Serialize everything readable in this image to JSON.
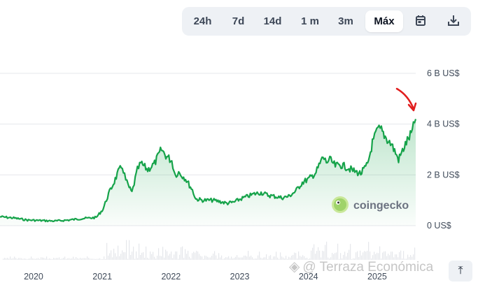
{
  "range_selector": {
    "options": [
      "24h",
      "7d",
      "14d",
      "1 m",
      "3m",
      "Máx"
    ],
    "active": "Máx",
    "calendar_icon": "calendar-icon",
    "download_icon": "download-icon"
  },
  "chart_data": {
    "type": "area",
    "title": "",
    "xlabel": "",
    "ylabel": "",
    "y_unit": "US$",
    "y_ticks": [
      "0 US$",
      "2 B US$",
      "4 B US$",
      "6 B US$"
    ],
    "y_tick_values": [
      0,
      2,
      4,
      6
    ],
    "ylim": [
      0,
      6
    ],
    "x_ticks": [
      "2020",
      "2021",
      "2022",
      "2023",
      "2024",
      "2025"
    ],
    "x_tick_values": [
      2020,
      2021,
      2022,
      2023,
      2024,
      2025
    ],
    "xlim": [
      2019.5,
      2025.55
    ],
    "grid": true,
    "line_color": "#16a34a",
    "series": [
      {
        "x": [
          2019.5,
          2019.7,
          2019.9,
          2020.1,
          2020.3,
          2020.5,
          2020.7,
          2020.9,
          2021.0,
          2021.08,
          2021.15,
          2021.22,
          2021.28,
          2021.33,
          2021.38,
          2021.42,
          2021.5,
          2021.55,
          2021.65,
          2021.75,
          2021.85,
          2021.9,
          2022.0,
          2022.05,
          2022.1,
          2022.2,
          2022.3,
          2022.35,
          2022.45,
          2022.5,
          2022.6,
          2022.7,
          2022.8,
          2022.9,
          2023.0,
          2023.1,
          2023.2,
          2023.3,
          2023.4,
          2023.5,
          2023.6,
          2023.7,
          2023.8,
          2023.9,
          2024.0,
          2024.1,
          2024.2,
          2024.25,
          2024.3,
          2024.38,
          2024.45,
          2024.55,
          2024.65,
          2024.75,
          2024.85,
          2024.92,
          2025.0,
          2025.05,
          2025.12,
          2025.2,
          2025.3,
          2025.4,
          2025.5,
          2025.55
        ],
        "y": [
          0.35,
          0.3,
          0.22,
          0.2,
          0.18,
          0.22,
          0.28,
          0.32,
          0.65,
          1.25,
          1.65,
          2.1,
          2.35,
          1.8,
          1.5,
          1.3,
          2.2,
          2.45,
          2.2,
          2.45,
          3.0,
          2.8,
          2.55,
          2.0,
          2.1,
          1.85,
          1.4,
          1.05,
          1.0,
          1.0,
          1.0,
          0.95,
          0.88,
          0.92,
          1.05,
          1.15,
          1.25,
          1.3,
          1.2,
          1.15,
          1.1,
          1.15,
          1.35,
          1.7,
          1.85,
          2.1,
          2.7,
          2.5,
          2.6,
          2.35,
          2.4,
          2.3,
          2.15,
          2.05,
          2.4,
          3.25,
          3.8,
          3.75,
          3.45,
          3.2,
          2.6,
          3.2,
          3.7,
          4.2
        ]
      }
    ]
  },
  "logo": {
    "text": "coingecko",
    "icon": "gecko-logo-icon"
  },
  "watermark": {
    "text": "@ Terraza Económica",
    "icon": "diamond-icon"
  },
  "corner_button": {
    "icon": "collapse-up-icon",
    "glyph": "⤒"
  },
  "annotation": {
    "icon": "red-arrow-icon",
    "color": "#e11d1d"
  }
}
